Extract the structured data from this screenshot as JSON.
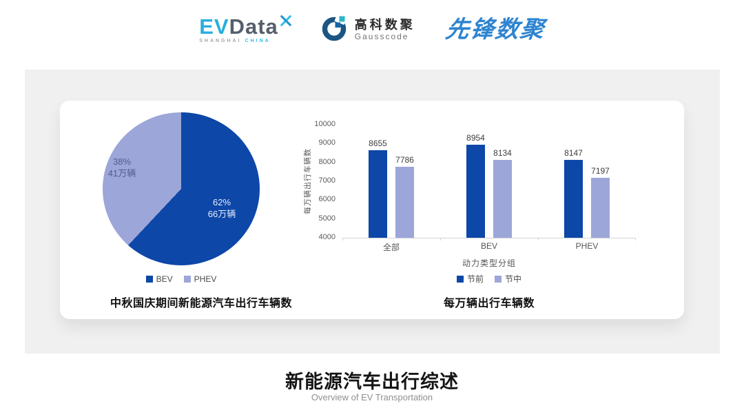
{
  "header": {
    "evdata_logo": {
      "ev": "EV",
      "data": "Data",
      "tagline_left": "SHANGHAI",
      "tagline_right": "CHINA"
    },
    "gausscode_logo": {
      "name_cn": "高科数聚",
      "name_en": "Gausscode"
    },
    "xianfeng_logo": {
      "name": "先锋数聚"
    }
  },
  "colors": {
    "series_primary": "#0d47a8",
    "series_secondary": "#9da6d8",
    "panel_bg": "#f0f0f1",
    "evdata_blue": "#29aede",
    "pioneer_blue": "#2e84d0"
  },
  "chart_data": [
    {
      "type": "pie",
      "title": "中秋国庆期间新能源汽车出行车辆数",
      "slices": [
        {
          "label": "BEV",
          "percent": 62,
          "pct_text": "62%",
          "value_text": "66万辆",
          "color": "#0d47a8"
        },
        {
          "label": "PHEV",
          "percent": 38,
          "pct_text": "38%",
          "value_text": "41万辆",
          "color": "#9da6d8"
        }
      ],
      "legend_position": "bottom",
      "start_angle": "top, clockwise"
    },
    {
      "type": "bar",
      "title": "每万辆出行车辆数",
      "xlabel": "动力类型分组",
      "ylabel": "每万辆出行车辆数",
      "categories": [
        "全部",
        "BEV",
        "PHEV"
      ],
      "series": [
        {
          "name": "节前",
          "color": "#0d47a8",
          "values": [
            8655,
            8954,
            8147
          ]
        },
        {
          "name": "节中",
          "color": "#9da6d8",
          "values": [
            7786,
            8134,
            7197
          ]
        }
      ],
      "ylim": [
        4000,
        10000
      ],
      "ytick_step": 1000,
      "grid": false,
      "legend_position": "bottom"
    }
  ],
  "footer": {
    "title": "新能源汽车出行综述",
    "subtitle": "Overview of EV Transportation"
  }
}
